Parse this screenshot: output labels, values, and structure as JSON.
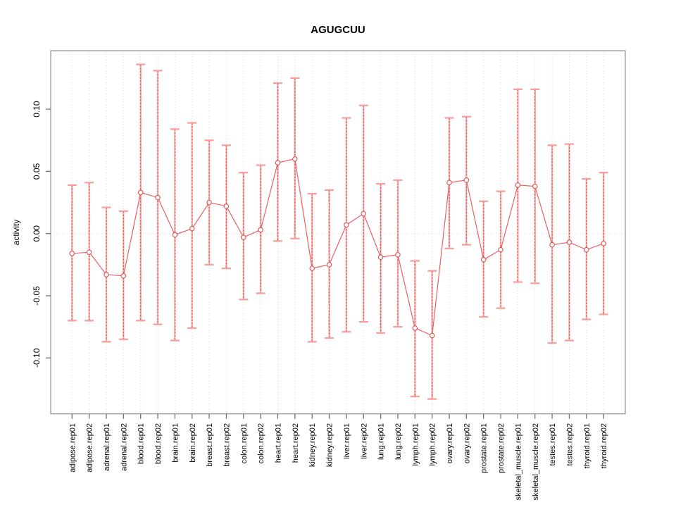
{
  "chart_data": {
    "type": "line",
    "title": "AGUGCUU",
    "xlabel": "",
    "ylabel": "activity",
    "legend_position": "none",
    "marker": "open-circle",
    "grid": "vertical-dotted-gridlines-and-dotted-zero-line",
    "ylim": [
      -0.145,
      0.147
    ],
    "ytick_values": [
      -0.1,
      -0.05,
      0.0,
      0.05,
      0.1
    ],
    "ytick_labels": [
      "-0.10",
      "-0.05",
      "0.00",
      "0.05",
      "0.10"
    ],
    "categories": [
      "adipose.rep01",
      "adipose.rep02",
      "adrenal.rep01",
      "adrenal.rep02",
      "blood.rep01",
      "blood.rep02",
      "brain.rep01",
      "brain.rep02",
      "breast.rep01",
      "breast.rep02",
      "colon.rep01",
      "colon.rep02",
      "heart.rep01",
      "heart.rep02",
      "kidney.rep01",
      "kidney.rep02",
      "liver.rep01",
      "liver.rep02",
      "lung.rep01",
      "lung.rep02",
      "lymph.rep01",
      "lymph.rep02",
      "ovary.rep01",
      "ovary.rep02",
      "prostate.rep01",
      "prostate.rep02",
      "skeletal_muscle.rep01",
      "skeletal_muscle.rep02",
      "testes.rep01",
      "testes.rep02",
      "thyroid.rep01",
      "thyroid.rep02"
    ],
    "series": [
      {
        "name": "activity",
        "values": [
          -0.016,
          -0.015,
          -0.033,
          -0.034,
          0.033,
          0.029,
          -0.001,
          0.004,
          0.025,
          0.022,
          -0.003,
          0.003,
          0.057,
          0.06,
          -0.028,
          -0.025,
          0.007,
          0.016,
          -0.019,
          -0.017,
          -0.076,
          -0.082,
          0.041,
          0.043,
          -0.021,
          -0.013,
          0.039,
          0.038,
          -0.009,
          -0.007,
          -0.013,
          -0.008
        ],
        "error_high": [
          0.039,
          0.041,
          0.021,
          0.018,
          0.136,
          0.131,
          0.084,
          0.089,
          0.075,
          0.071,
          0.049,
          0.055,
          0.121,
          0.125,
          0.032,
          0.035,
          0.093,
          0.103,
          0.04,
          0.043,
          -0.022,
          -0.03,
          0.093,
          0.094,
          0.026,
          0.034,
          0.116,
          0.116,
          0.071,
          0.072,
          0.044,
          0.049
        ],
        "error_low": [
          -0.07,
          -0.07,
          -0.087,
          -0.085,
          -0.07,
          -0.073,
          -0.086,
          -0.076,
          -0.025,
          -0.028,
          -0.053,
          -0.048,
          -0.006,
          -0.004,
          -0.087,
          -0.084,
          -0.079,
          -0.071,
          -0.08,
          -0.075,
          -0.131,
          -0.133,
          -0.012,
          -0.009,
          -0.067,
          -0.06,
          -0.039,
          -0.04,
          -0.088,
          -0.086,
          -0.069,
          -0.065
        ]
      }
    ],
    "colors": {
      "series_line": "#e86060",
      "error_bar_core": "#e04f4f",
      "error_bar_halo": "#f8b4b4",
      "error_bar_cap": "#f59f9f",
      "marker_stroke": "#e04f4f",
      "marker_fill": "#ffffff",
      "grid": "#d8d8d8",
      "zero_line": "#e6d4d4",
      "frame": "#9a9a9a",
      "tick": "#707070",
      "text": "#000000"
    }
  }
}
